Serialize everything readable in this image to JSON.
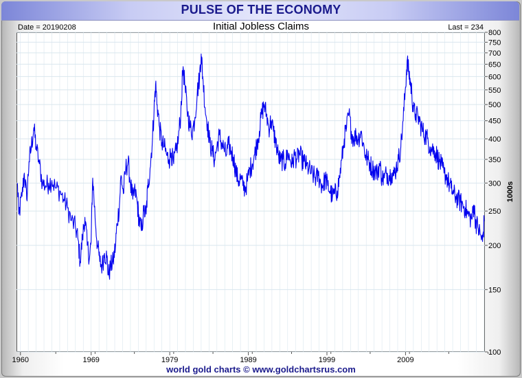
{
  "header": {
    "title": "PULSE OF THE ECONOMY",
    "date_label": "Date = 20190208",
    "last_label": "Last = 234"
  },
  "footer": {
    "credit": "world gold charts © www.goldchartsrus.com"
  },
  "colors": {
    "line": "#0000ee",
    "title_text": "#1a1a8c",
    "grid": "#d9e6ee"
  },
  "chart_data": {
    "type": "line",
    "title": "Initial Jobless Claims",
    "xlabel": "",
    "ylabel": "1000s",
    "y_scale": "log",
    "ylim": [
      100,
      800
    ],
    "xlim": [
      1959.5,
      2019.1
    ],
    "yticks": [
      100,
      150,
      200,
      250,
      300,
      350,
      400,
      450,
      500,
      550,
      600,
      650,
      700,
      750,
      800
    ],
    "xticks": [
      {
        "value": 1960,
        "label": "1960"
      },
      {
        "value": 1969,
        "label": "1969"
      },
      {
        "value": 1979,
        "label": "1979"
      },
      {
        "value": 1989,
        "label": "1989"
      },
      {
        "value": 1999,
        "label": "1999"
      },
      {
        "value": 2009,
        "label": "2009"
      }
    ],
    "grid": true,
    "series": [
      {
        "name": "",
        "points": [
          [
            1959.6,
            300
          ],
          [
            1959.8,
            245
          ],
          [
            1960.2,
            275
          ],
          [
            1960.5,
            320
          ],
          [
            1960.8,
            270
          ],
          [
            1961.1,
            345
          ],
          [
            1961.4,
            380
          ],
          [
            1961.7,
            430
          ],
          [
            1962.0,
            380
          ],
          [
            1962.4,
            340
          ],
          [
            1962.8,
            300
          ],
          [
            1963.2,
            295
          ],
          [
            1963.6,
            300
          ],
          [
            1964.0,
            305
          ],
          [
            1964.5,
            290
          ],
          [
            1965.0,
            285
          ],
          [
            1965.5,
            270
          ],
          [
            1966.0,
            255
          ],
          [
            1966.5,
            235
          ],
          [
            1967.0,
            225
          ],
          [
            1967.3,
            210
          ],
          [
            1967.6,
            180
          ],
          [
            1967.9,
            210
          ],
          [
            1968.2,
            240
          ],
          [
            1968.5,
            200
          ],
          [
            1968.8,
            185
          ],
          [
            1969.0,
            205
          ],
          [
            1969.2,
            310
          ],
          [
            1969.5,
            240
          ],
          [
            1969.8,
            200
          ],
          [
            1970.1,
            180
          ],
          [
            1970.4,
            175
          ],
          [
            1970.7,
            190
          ],
          [
            1971.0,
            185
          ],
          [
            1971.2,
            165
          ],
          [
            1971.5,
            175
          ],
          [
            1971.8,
            180
          ],
          [
            1972.1,
            200
          ],
          [
            1972.3,
            230
          ],
          [
            1972.6,
            260
          ],
          [
            1972.8,
            315
          ],
          [
            1973.1,
            280
          ],
          [
            1973.4,
            330
          ],
          [
            1973.7,
            345
          ],
          [
            1974.0,
            300
          ],
          [
            1974.3,
            270
          ],
          [
            1974.6,
            285
          ],
          [
            1974.9,
            260
          ],
          [
            1975.1,
            235
          ],
          [
            1975.4,
            220
          ],
          [
            1975.7,
            250
          ],
          [
            1976.0,
            245
          ],
          [
            1976.2,
            290
          ],
          [
            1976.5,
            330
          ],
          [
            1976.8,
            400
          ],
          [
            1977.0,
            480
          ],
          [
            1977.2,
            570
          ],
          [
            1977.4,
            500
          ],
          [
            1977.7,
            430
          ],
          [
            1978.0,
            390
          ],
          [
            1978.3,
            380
          ],
          [
            1978.6,
            360
          ],
          [
            1978.9,
            350
          ],
          [
            1979.2,
            365
          ],
          [
            1979.5,
            340
          ],
          [
            1979.8,
            370
          ],
          [
            1980.1,
            400
          ],
          [
            1980.4,
            470
          ],
          [
            1980.7,
            640
          ],
          [
            1981.0,
            540
          ],
          [
            1981.3,
            470
          ],
          [
            1981.6,
            430
          ],
          [
            1981.9,
            420
          ],
          [
            1982.2,
            460
          ],
          [
            1982.5,
            540
          ],
          [
            1982.8,
            600
          ],
          [
            1983.0,
            695
          ],
          [
            1983.2,
            600
          ],
          [
            1983.5,
            490
          ],
          [
            1983.8,
            440
          ],
          [
            1984.1,
            390
          ],
          [
            1984.4,
            370
          ],
          [
            1984.7,
            350
          ],
          [
            1985.0,
            380
          ],
          [
            1985.3,
            410
          ],
          [
            1985.6,
            390
          ],
          [
            1985.9,
            375
          ],
          [
            1986.2,
            360
          ],
          [
            1986.5,
            385
          ],
          [
            1986.8,
            370
          ],
          [
            1987.1,
            355
          ],
          [
            1987.4,
            325
          ],
          [
            1987.7,
            305
          ],
          [
            1988.0,
            310
          ],
          [
            1988.3,
            295
          ],
          [
            1988.6,
            290
          ],
          [
            1988.9,
            305
          ],
          [
            1989.2,
            330
          ],
          [
            1989.5,
            340
          ],
          [
            1989.8,
            360
          ],
          [
            1990.1,
            390
          ],
          [
            1990.4,
            420
          ],
          [
            1990.7,
            470
          ],
          [
            1991.0,
            500
          ],
          [
            1991.3,
            470
          ],
          [
            1991.6,
            430
          ],
          [
            1991.9,
            450
          ],
          [
            1992.2,
            420
          ],
          [
            1992.5,
            390
          ],
          [
            1992.8,
            360
          ],
          [
            1993.1,
            345
          ],
          [
            1993.4,
            350
          ],
          [
            1993.7,
            340
          ],
          [
            1994.0,
            365
          ],
          [
            1994.3,
            350
          ],
          [
            1994.6,
            340
          ],
          [
            1994.9,
            360
          ],
          [
            1995.2,
            350
          ],
          [
            1995.5,
            365
          ],
          [
            1995.8,
            350
          ],
          [
            1996.1,
            345
          ],
          [
            1996.4,
            335
          ],
          [
            1996.7,
            330
          ],
          [
            1997.0,
            320
          ],
          [
            1997.3,
            315
          ],
          [
            1997.6,
            310
          ],
          [
            1997.9,
            315
          ],
          [
            1998.2,
            300
          ],
          [
            1998.5,
            295
          ],
          [
            1998.8,
            310
          ],
          [
            1999.1,
            295
          ],
          [
            1999.4,
            285
          ],
          [
            1999.7,
            275
          ],
          [
            2000.0,
            280
          ],
          [
            2000.3,
            285
          ],
          [
            2000.6,
            310
          ],
          [
            2000.9,
            350
          ],
          [
            2001.2,
            400
          ],
          [
            2001.5,
            430
          ],
          [
            2001.8,
            470
          ],
          [
            2002.1,
            420
          ],
          [
            2002.4,
            400
          ],
          [
            2002.7,
            410
          ],
          [
            2003.0,
            400
          ],
          [
            2003.3,
            420
          ],
          [
            2003.6,
            390
          ],
          [
            2003.9,
            360
          ],
          [
            2004.2,
            350
          ],
          [
            2004.5,
            340
          ],
          [
            2004.8,
            330
          ],
          [
            2005.1,
            325
          ],
          [
            2005.4,
            320
          ],
          [
            2005.7,
            340
          ],
          [
            2006.0,
            310
          ],
          [
            2006.3,
            310
          ],
          [
            2006.6,
            320
          ],
          [
            2006.9,
            315
          ],
          [
            2007.2,
            320
          ],
          [
            2007.5,
            315
          ],
          [
            2007.8,
            330
          ],
          [
            2008.1,
            350
          ],
          [
            2008.4,
            380
          ],
          [
            2008.7,
            450
          ],
          [
            2009.0,
            560
          ],
          [
            2009.2,
            665
          ],
          [
            2009.4,
            620
          ],
          [
            2009.6,
            580
          ],
          [
            2009.8,
            540
          ],
          [
            2010.0,
            480
          ],
          [
            2010.3,
            470
          ],
          [
            2010.6,
            460
          ],
          [
            2010.9,
            440
          ],
          [
            2011.2,
            420
          ],
          [
            2011.5,
            410
          ],
          [
            2011.8,
            400
          ],
          [
            2012.1,
            380
          ],
          [
            2012.4,
            375
          ],
          [
            2012.7,
            370
          ],
          [
            2013.0,
            360
          ],
          [
            2013.3,
            345
          ],
          [
            2013.6,
            335
          ],
          [
            2013.9,
            320
          ],
          [
            2014.2,
            315
          ],
          [
            2014.5,
            300
          ],
          [
            2014.8,
            290
          ],
          [
            2015.1,
            280
          ],
          [
            2015.4,
            275
          ],
          [
            2015.7,
            270
          ],
          [
            2016.0,
            265
          ],
          [
            2016.3,
            260
          ],
          [
            2016.6,
            255
          ],
          [
            2016.9,
            245
          ],
          [
            2017.2,
            240
          ],
          [
            2017.5,
            240
          ],
          [
            2017.7,
            260
          ],
          [
            2017.9,
            235
          ],
          [
            2018.2,
            225
          ],
          [
            2018.5,
            215
          ],
          [
            2018.8,
            205
          ],
          [
            2019.0,
            234
          ]
        ]
      }
    ]
  }
}
